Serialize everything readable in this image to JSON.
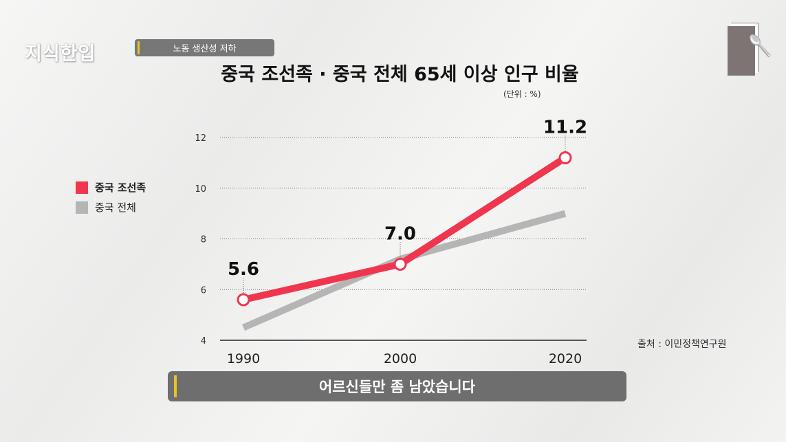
{
  "header": {
    "logo": "지식한입",
    "tag": "노동 생산성 저하",
    "title": "중국 조선족 · 중국 전체 65세 이상 인구 비율",
    "unit": "(단위 : %)"
  },
  "source": "출처 : 이민정책연구원",
  "subtitle": "어르신들만 좀 남았습니다",
  "colors": {
    "red": "#f0364f",
    "gray": "#b5b5b5"
  },
  "chart_data": {
    "type": "line",
    "title": "중국 조선족 · 중국 전체 65세 이상 인구 비율",
    "x": [
      "1990",
      "2000",
      "2020"
    ],
    "yticks": [
      "4",
      "6",
      "8",
      "10",
      "12"
    ],
    "ylim": [
      4,
      12
    ],
    "legend_position": "left",
    "series": [
      {
        "name": "중국 조선족",
        "values": [
          5.6,
          7.0,
          11.2
        ],
        "labels": [
          "5.6",
          "7.0",
          "11.2"
        ]
      },
      {
        "name": "중국 전체",
        "values": [
          4.5,
          7.2,
          9.0
        ]
      }
    ]
  }
}
